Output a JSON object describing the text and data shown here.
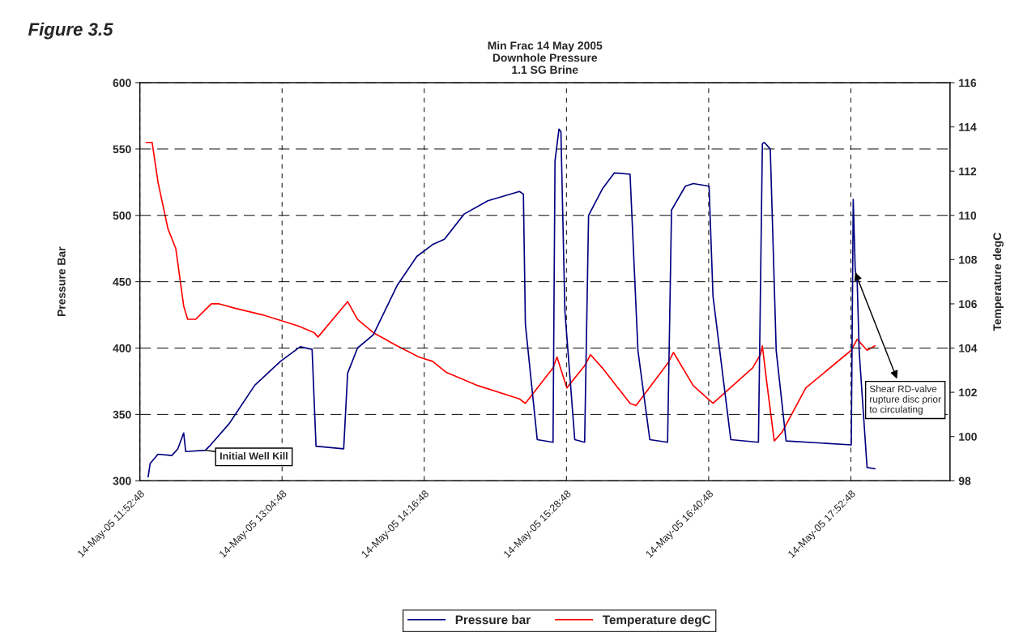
{
  "chart_data": {
    "type": "line",
    "title": "Min Frac 14 May 2005\nDownhole Pressure\n1.1 SG Brine",
    "ylabel": "Pressure Bar",
    "y2label": "Temperature degC",
    "xlim": [
      "2005-05-14T11:52:48",
      "2005-05-14T18:43"
    ],
    "xticks": [
      {
        "value": "2005-05-14T11:52:48",
        "label": "14-May-05 11:52:48"
      },
      {
        "value": "2005-05-14T13:04:48",
        "label": "14-May-05 13:04:48"
      },
      {
        "value": "2005-05-14T14:16:48",
        "label": "14-May-05 14:16:48"
      },
      {
        "value": "2005-05-14T15:28:48",
        "label": "14-May-05 15:28:48"
      },
      {
        "value": "2005-05-14T16:40:48",
        "label": "14-May-05 16:40:48"
      },
      {
        "value": "2005-05-14T17:52:48",
        "label": "14-May-05 17:52:48"
      }
    ],
    "ylim": [
      300,
      600
    ],
    "yticks": [
      300,
      350,
      400,
      450,
      500,
      550,
      600
    ],
    "y2lim": [
      98,
      116
    ],
    "y2ticks": [
      98,
      100,
      102,
      104,
      106,
      108,
      110,
      112,
      114,
      116
    ],
    "grid": true,
    "legend": "bottom",
    "marker": "none",
    "line_style": "solid",
    "annotations": [
      "Figure 3.5",
      {
        "text": "Initial Well Kill",
        "x": "2005-05-14T12:26",
        "y": 323
      },
      {
        "text": "Shear RD-valve rupture disc prior to circulating",
        "x": "2005-05-14T17:55",
        "y": 457
      }
    ],
    "series": [
      {
        "name": "Pressure bar",
        "color": "#000080",
        "x": [
          "2005-05-14T11:57",
          "2005-05-14T11:58",
          "2005-05-14T12:02",
          "2005-05-14T12:09",
          "2005-05-14T12:12",
          "2005-05-14T12:15",
          "2005-05-14T12:16",
          "2005-05-14T12:26",
          "2005-05-14T12:28",
          "2005-05-14T12:38",
          "2005-05-14T12:51",
          "2005-05-14T13:04",
          "2005-05-14T13:14",
          "2005-05-14T13:20",
          "2005-05-14T13:22",
          "2005-05-14T13:36",
          "2005-05-14T13:38",
          "2005-05-14T13:43",
          "2005-05-14T13:51",
          "2005-05-14T14:03",
          "2005-05-14T14:13",
          "2005-05-14T14:21",
          "2005-05-14T14:27",
          "2005-05-14T14:37",
          "2005-05-14T14:49",
          "2005-05-14T15:05",
          "2005-05-14T15:07",
          "2005-05-14T15:08",
          "2005-05-14T15:14",
          "2005-05-14T15:22",
          "2005-05-14T15:23",
          "2005-05-14T15:25",
          "2005-05-14T15:26",
          "2005-05-14T15:28",
          "2005-05-14T15:33",
          "2005-05-14T15:38",
          "2005-05-14T15:40",
          "2005-05-14T15:47",
          "2005-05-14T15:53",
          "2005-05-14T16:01",
          "2005-05-14T16:05",
          "2005-05-14T16:11",
          "2005-05-14T16:20",
          "2005-05-14T16:22",
          "2005-05-14T16:29",
          "2005-05-14T16:33",
          "2005-05-14T16:41",
          "2005-05-14T16:43",
          "2005-05-14T16:52",
          "2005-05-14T17:06",
          "2005-05-14T17:08",
          "2005-05-14T17:09",
          "2005-05-14T17:12",
          "2005-05-14T17:15",
          "2005-05-14T17:20",
          "2005-05-14T17:53",
          "2005-05-14T17:54",
          "2005-05-14T17:55",
          "2005-05-14T17:56",
          "2005-05-14T17:57",
          "2005-05-14T18:01",
          "2005-05-14T18:05"
        ],
        "values": [
          303,
          313,
          320,
          319,
          324,
          336,
          322,
          323,
          326,
          343,
          372,
          390,
          401,
          399,
          326,
          324,
          381,
          400,
          410,
          447,
          469,
          478,
          482,
          501,
          511,
          518,
          516,
          418,
          331,
          329,
          541,
          565,
          563,
          428,
          331,
          329,
          500,
          520,
          532,
          531,
          398,
          331,
          329,
          504,
          522,
          524,
          522,
          439,
          331,
          329,
          554,
          555,
          550,
          398,
          330,
          327,
          512,
          459,
          450,
          398,
          310,
          309
        ]
      },
      {
        "name": "Temperature degC",
        "color": "#ff0000",
        "axis": "y2",
        "x": [
          "2005-05-14T11:56",
          "2005-05-14T11:59",
          "2005-05-14T12:02",
          "2005-05-14T12:07",
          "2005-05-14T12:11",
          "2005-05-14T12:15",
          "2005-05-14T12:17",
          "2005-05-14T12:21",
          "2005-05-14T12:29",
          "2005-05-14T12:33",
          "2005-05-14T12:41",
          "2005-05-14T12:55",
          "2005-05-14T13:13",
          "2005-05-14T13:21",
          "2005-05-14T13:23",
          "2005-05-14T13:38",
          "2005-05-14T13:43",
          "2005-05-14T13:51",
          "2005-05-14T14:03",
          "2005-05-14T14:14",
          "2005-05-14T14:21",
          "2005-05-14T14:28",
          "2005-05-14T14:44",
          "2005-05-14T15:05",
          "2005-05-14T15:08",
          "2005-05-14T15:22",
          "2005-05-14T15:24",
          "2005-05-14T15:29",
          "2005-05-14T15:38",
          "2005-05-14T15:41",
          "2005-05-14T15:47",
          "2005-05-14T16:01",
          "2005-05-14T16:04",
          "2005-05-14T16:20",
          "2005-05-14T16:23",
          "2005-05-14T16:33",
          "2005-05-14T16:43",
          "2005-05-14T17:03",
          "2005-05-14T17:07",
          "2005-05-14T17:08",
          "2005-05-14T17:10",
          "2005-05-14T17:14",
          "2005-05-14T17:18",
          "2005-05-14T17:30",
          "2005-05-14T17:53",
          "2005-05-14T17:56",
          "2005-05-14T18:01",
          "2005-05-14T18:05"
        ],
        "values": [
          113.3,
          113.3,
          111.5,
          109.4,
          108.5,
          105.9,
          105.3,
          105.3,
          106.0,
          106.0,
          105.8,
          105.5,
          105.0,
          104.7,
          104.5,
          106.1,
          105.3,
          104.7,
          104.1,
          103.6,
          103.4,
          102.9,
          102.3,
          101.7,
          101.5,
          103.1,
          103.6,
          102.2,
          103.2,
          103.7,
          103.1,
          101.5,
          101.4,
          103.3,
          103.8,
          102.3,
          101.5,
          103.1,
          103.7,
          104.1,
          102.6,
          99.8,
          100.2,
          102.2,
          103.9,
          104.4,
          103.9,
          104.1
        ]
      }
    ]
  }
}
